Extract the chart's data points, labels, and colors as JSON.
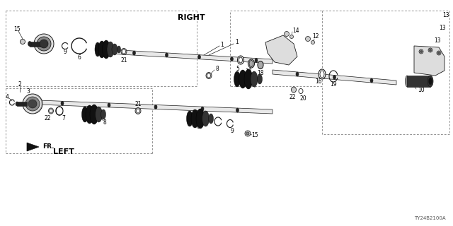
{
  "background_color": "#ffffff",
  "diagram_code": "TY24B2100A",
  "right_label": "RIGHT",
  "left_label": "LEFT",
  "fr_label": "FR.",
  "line_color": "#1a1a1a",
  "text_color": "#000000",
  "dashed_color": "#666666",
  "figsize": [
    6.4,
    3.2
  ],
  "dpi": 100,
  "xlim": [
    0,
    640
  ],
  "ylim": [
    0,
    320
  ]
}
